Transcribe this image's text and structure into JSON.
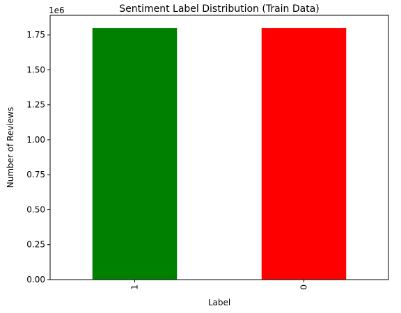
{
  "chart_data": {
    "type": "bar",
    "title": "Sentiment Label Distribution (Train Data)",
    "xlabel": "Label",
    "ylabel": "Number of Reviews",
    "y_offset_label": "1e6",
    "categories": [
      "1",
      "0"
    ],
    "values": [
      1800000,
      1800000
    ],
    "colors": [
      "#008000",
      "#ff0000"
    ],
    "ylim": [
      0,
      1890000
    ],
    "y_ticks": [
      0,
      250000,
      500000,
      750000,
      1000000,
      1250000,
      1500000,
      1750000
    ],
    "y_tick_labels": [
      "0.00",
      "0.25",
      "0.50",
      "0.75",
      "1.00",
      "1.25",
      "1.50",
      "1.75"
    ],
    "x_tick_rotation": "vertical",
    "grid": false,
    "legend": "none"
  }
}
